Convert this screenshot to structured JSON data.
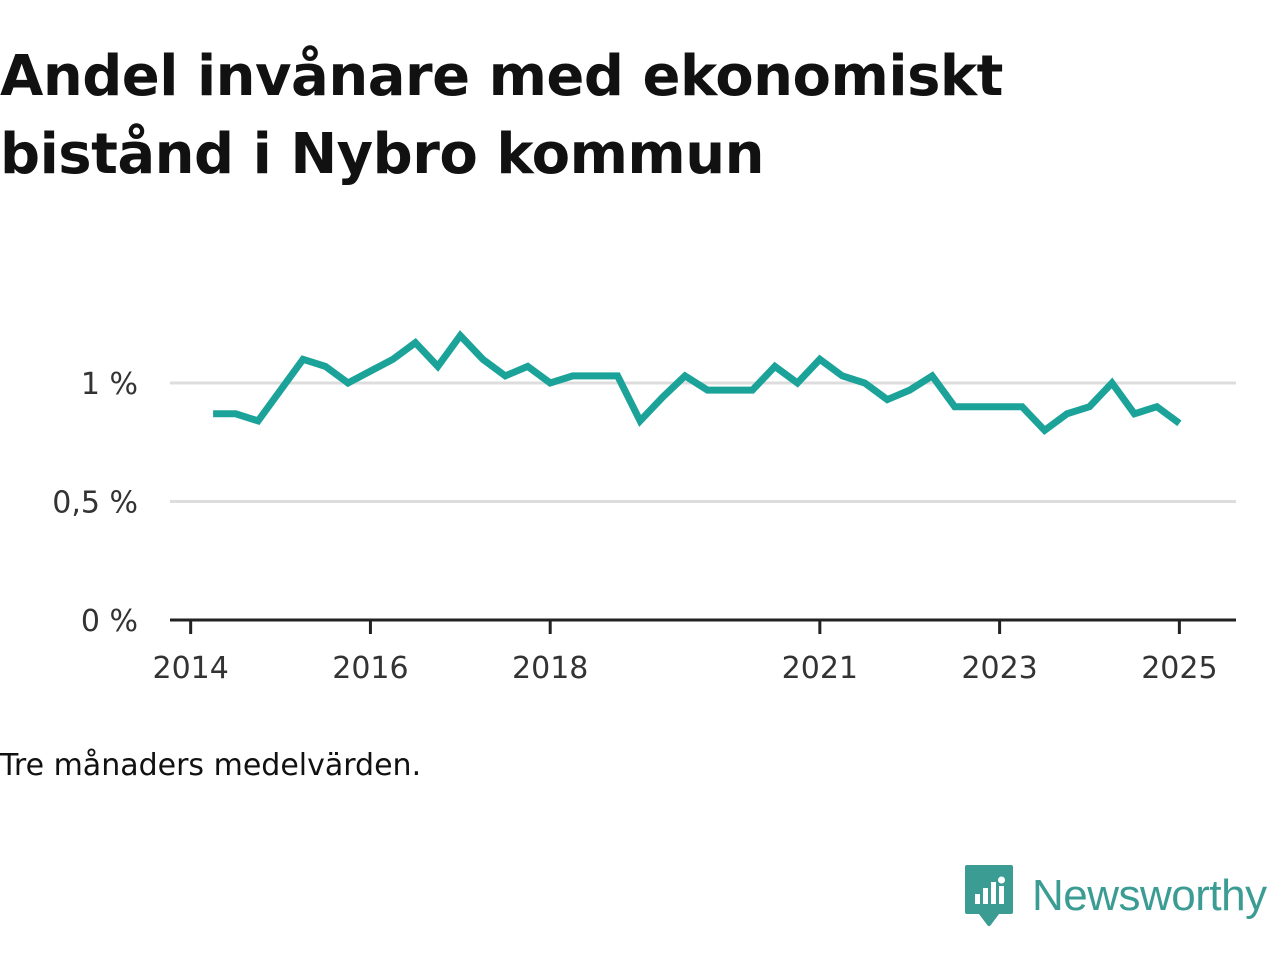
{
  "header": {
    "title": "Andel invånare med ekonomiskt bistånd i Nybro kommun"
  },
  "chart_data": {
    "type": "line",
    "title": "Andel invånare med ekonomiskt bistånd i Nybro kommun",
    "xlabel": "",
    "ylabel": "",
    "x": [
      2014.25,
      2014.5,
      2014.75,
      2015.0,
      2015.25,
      2015.5,
      2015.75,
      2016.0,
      2016.25,
      2016.5,
      2016.75,
      2017.0,
      2017.25,
      2017.5,
      2017.75,
      2018.0,
      2018.25,
      2018.5,
      2018.75,
      2019.0,
      2019.25,
      2019.5,
      2019.75,
      2020.0,
      2020.25,
      2020.5,
      2020.75,
      2021.0,
      2021.25,
      2021.5,
      2021.75,
      2022.0,
      2022.25,
      2022.5,
      2022.75,
      2023.0,
      2023.25,
      2023.5,
      2023.75,
      2024.0,
      2024.25,
      2024.5,
      2024.75,
      2025.0
    ],
    "series": [
      {
        "values": [
          0.87,
          0.87,
          0.84,
          0.97,
          1.1,
          1.07,
          1.0,
          1.05,
          1.1,
          1.17,
          1.07,
          1.2,
          1.1,
          1.03,
          1.07,
          1.0,
          1.03,
          1.03,
          1.03,
          0.84,
          0.94,
          1.03,
          0.97,
          0.97,
          0.97,
          1.07,
          1.0,
          1.1,
          1.03,
          1.0,
          0.93,
          0.97,
          1.03,
          0.9,
          0.9,
          0.9,
          0.9,
          0.8,
          0.87,
          0.9,
          1.0,
          0.87,
          0.9,
          0.83
        ]
      }
    ],
    "x_ticks": [
      {
        "value": 2014,
        "label": "2014"
      },
      {
        "value": 2016,
        "label": "2016"
      },
      {
        "value": 2018,
        "label": "2018"
      },
      {
        "value": 2021,
        "label": "2021"
      },
      {
        "value": 2023,
        "label": "2023"
      },
      {
        "value": 2025,
        "label": "2025"
      }
    ],
    "y_ticks": [
      {
        "value": 0,
        "label": "0 %"
      },
      {
        "value": 0.5,
        "label": "0,5 %"
      },
      {
        "value": 1,
        "label": "1 %"
      }
    ],
    "xlim": [
      2013.77,
      2025.63
    ],
    "ylim": [
      0,
      1.2
    ],
    "grid": true,
    "legend": "none",
    "colors": {
      "line": "#1ba39a",
      "grid": "#dddddd",
      "axis": "#222222",
      "tick_text": "#333333"
    }
  },
  "caption": "Tre månaders medelvärden.",
  "brand": {
    "name": "Newsworthy",
    "icon": "newsworthy-logo-icon",
    "color": "#3b9c93"
  }
}
